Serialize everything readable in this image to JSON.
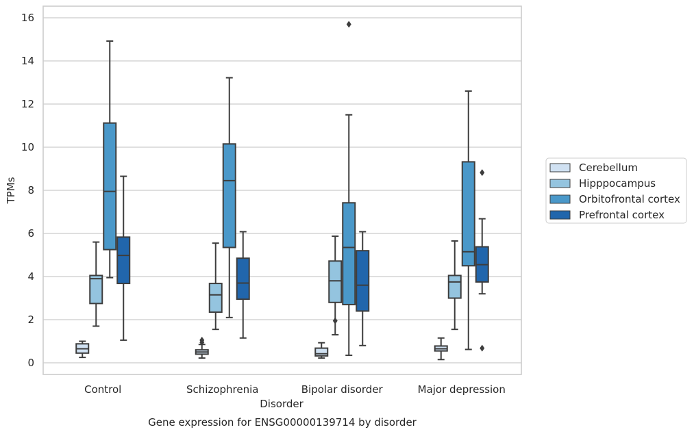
{
  "chart_data": {
    "type": "box",
    "title": "",
    "caption": "Gene expression for ENSG00000139714 by disorder",
    "xlabel": "Disorder",
    "ylabel": "TPMs",
    "ylim": [
      -0.6,
      16.5
    ],
    "yticks": [
      0,
      2,
      4,
      6,
      8,
      10,
      12,
      14,
      16
    ],
    "grid": "horizontal",
    "legend_position": "right",
    "categories": [
      "Control",
      "Schizophrenia",
      "Bipolar disorder",
      "Major depression"
    ],
    "series": [
      {
        "name": "Cerebellum",
        "color": "#d0e1f2",
        "boxes": [
          {
            "whislo": 0.25,
            "q1": 0.45,
            "med": 0.65,
            "q3": 0.88,
            "whishi": 1.0,
            "fliers": []
          },
          {
            "whislo": 0.22,
            "q1": 0.4,
            "med": 0.5,
            "q3": 0.6,
            "whishi": 0.85,
            "fliers": [
              1.05,
              0.95
            ]
          },
          {
            "whislo": 0.22,
            "q1": 0.32,
            "med": 0.42,
            "q3": 0.68,
            "whishi": 0.93,
            "fliers": []
          },
          {
            "whislo": 0.15,
            "q1": 0.55,
            "med": 0.65,
            "q3": 0.78,
            "whishi": 1.15,
            "fliers": []
          }
        ]
      },
      {
        "name": "Hipppocampus",
        "color": "#94c4df",
        "boxes": [
          {
            "whislo": 1.7,
            "q1": 2.75,
            "med": 3.9,
            "q3": 4.05,
            "whishi": 5.6,
            "fliers": []
          },
          {
            "whislo": 1.55,
            "q1": 2.35,
            "med": 3.15,
            "q3": 3.68,
            "whishi": 5.55,
            "fliers": []
          },
          {
            "whislo": 1.3,
            "q1": 2.8,
            "med": 3.8,
            "q3": 4.72,
            "whishi": 5.87,
            "fliers": [
              1.95
            ]
          },
          {
            "whislo": 1.55,
            "q1": 3.0,
            "med": 3.75,
            "q3": 4.05,
            "whishi": 5.65,
            "fliers": []
          }
        ]
      },
      {
        "name": "Orbitofrontal cortex",
        "color": "#4a98c9",
        "boxes": [
          {
            "whislo": 3.95,
            "q1": 5.25,
            "med": 7.95,
            "q3": 11.12,
            "whishi": 14.92,
            "fliers": []
          },
          {
            "whislo": 2.1,
            "q1": 5.35,
            "med": 8.45,
            "q3": 10.15,
            "whishi": 13.22,
            "fliers": []
          },
          {
            "whislo": 0.35,
            "q1": 2.7,
            "med": 5.35,
            "q3": 7.42,
            "whishi": 11.5,
            "fliers": [
              15.7
            ]
          },
          {
            "whislo": 0.62,
            "q1": 4.5,
            "med": 5.15,
            "q3": 9.32,
            "whishi": 12.6,
            "fliers": []
          }
        ]
      },
      {
        "name": "Prefrontal cortex",
        "color": "#2166ac",
        "boxes": [
          {
            "whislo": 1.05,
            "q1": 3.68,
            "med": 4.98,
            "q3": 5.83,
            "whishi": 8.65,
            "fliers": []
          },
          {
            "whislo": 1.15,
            "q1": 2.95,
            "med": 3.7,
            "q3": 4.85,
            "whishi": 6.08,
            "fliers": []
          },
          {
            "whislo": 0.8,
            "q1": 2.4,
            "med": 3.6,
            "q3": 5.2,
            "whishi": 6.08,
            "fliers": []
          },
          {
            "whislo": 3.2,
            "q1": 3.75,
            "med": 4.55,
            "q3": 5.38,
            "whishi": 6.68,
            "fliers": [
              8.82,
              0.68
            ]
          }
        ]
      }
    ]
  }
}
